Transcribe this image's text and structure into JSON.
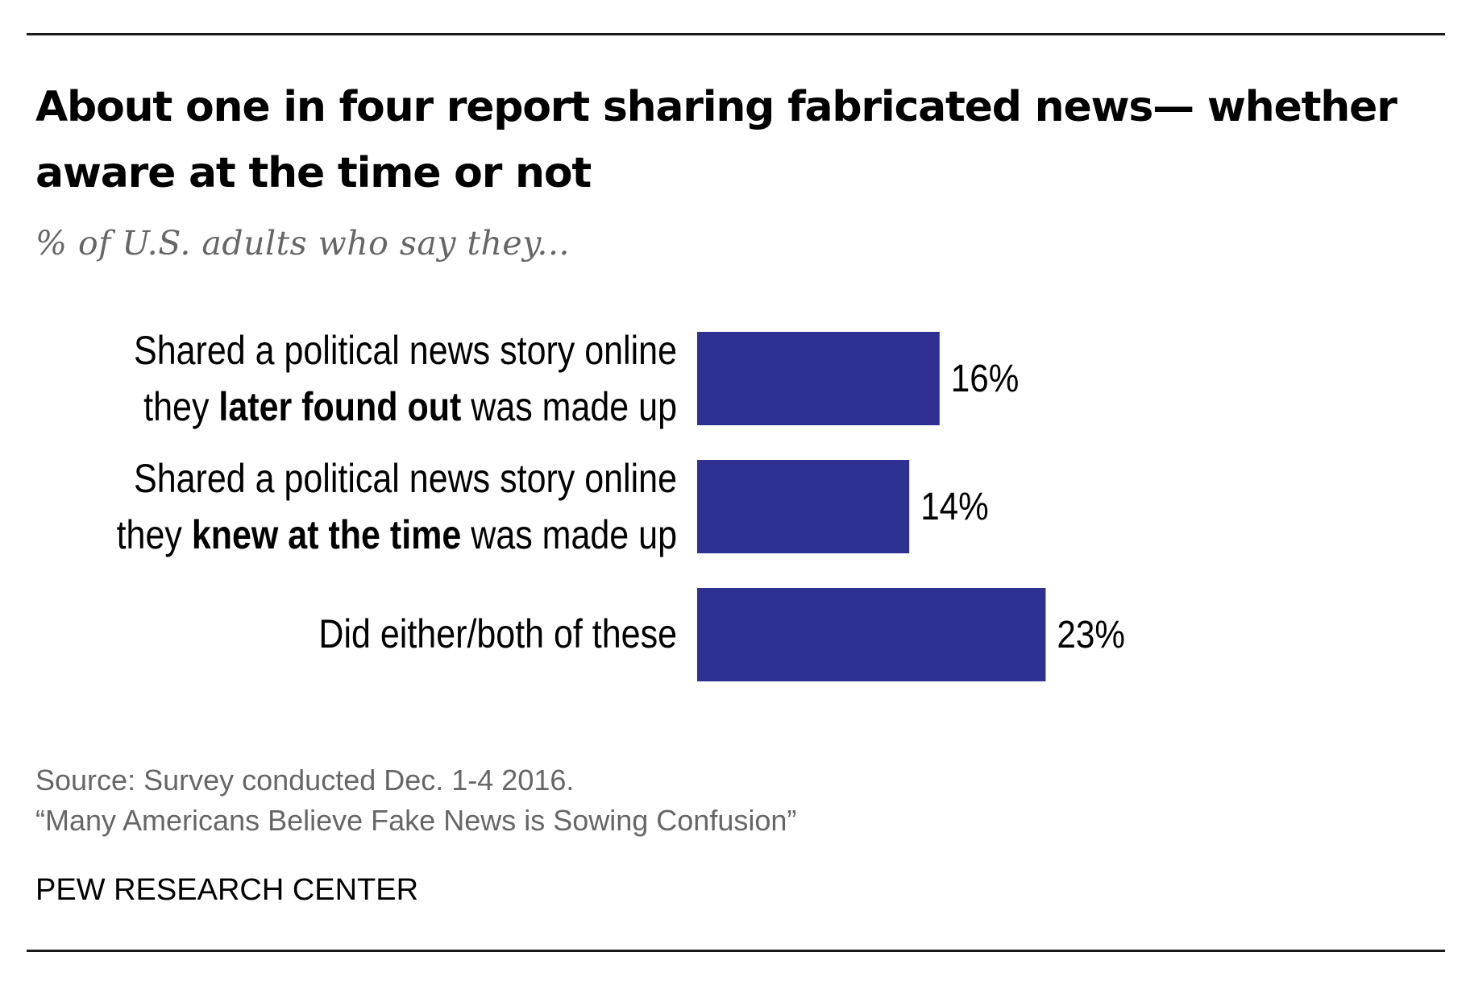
{
  "title": "About one in four report sharing fabricated news— whether aware at the time or not",
  "subtitle": "% of  U.S. adults who say they...",
  "chart_data": {
    "type": "bar",
    "orientation": "horizontal",
    "categories": [
      {
        "line1": "Shared a political news story online",
        "line2_before": "they ",
        "line2_bold": "later found out",
        "line2_after": " was made up"
      },
      {
        "line1": "Shared a political news story online",
        "line2_before": "they ",
        "line2_bold": "knew at the time",
        "line2_after": " was made up"
      },
      {
        "line1": "Did either/both of these",
        "line2_before": "",
        "line2_bold": "",
        "line2_after": ""
      }
    ],
    "values": [
      16,
      14,
      23
    ],
    "value_labels": [
      "16%",
      "14%",
      "23%"
    ],
    "unit": "%",
    "bar_color": "#2e3192",
    "grid": false,
    "legend": "none"
  },
  "footer": {
    "source": "Source: Survey conducted Dec. 1-4 2016.",
    "report": "“Many Americans Believe Fake News is Sowing Confusion”"
  },
  "organization": "PEW RESEARCH CENTER"
}
